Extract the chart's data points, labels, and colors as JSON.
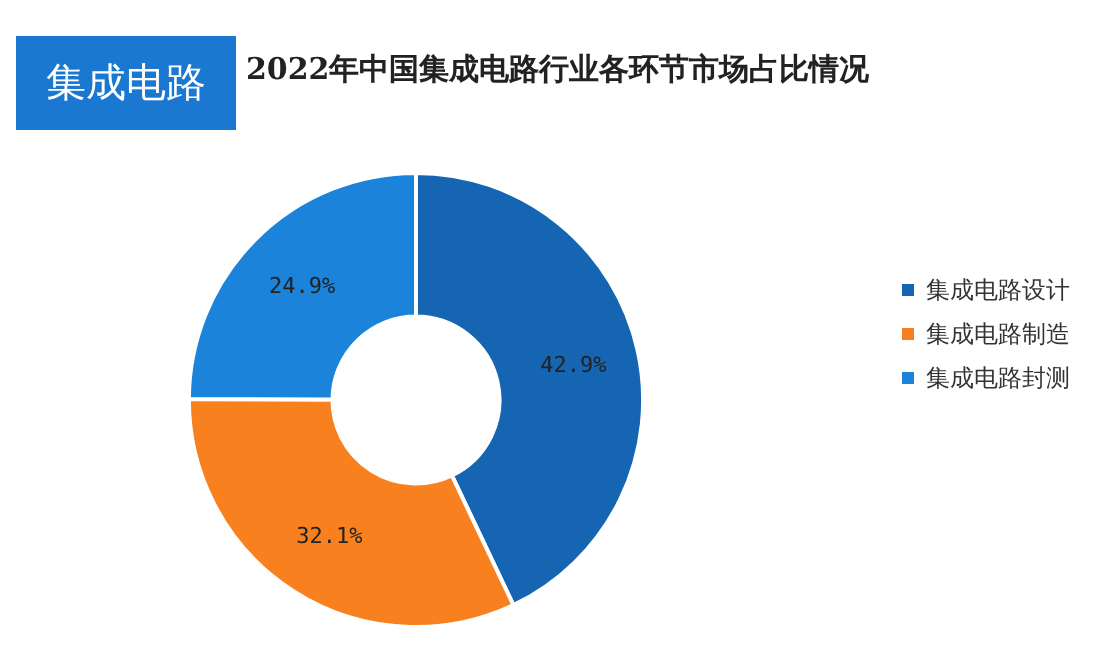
{
  "chart_data": {
    "type": "donut",
    "title": "2022年中国集成电路行业各环节市场占比情况",
    "annotations": [
      "集成电路"
    ],
    "categories": [
      "集成电路设计",
      "集成电路制造",
      "集成电路封测"
    ],
    "values": [
      42.9,
      32.1,
      24.9
    ],
    "colors": [
      "#1565b2",
      "#f8801f",
      "#1b83d9"
    ],
    "value_labels": [
      "42.9%",
      "32.1%",
      "24.9%"
    ],
    "legend": "right"
  }
}
